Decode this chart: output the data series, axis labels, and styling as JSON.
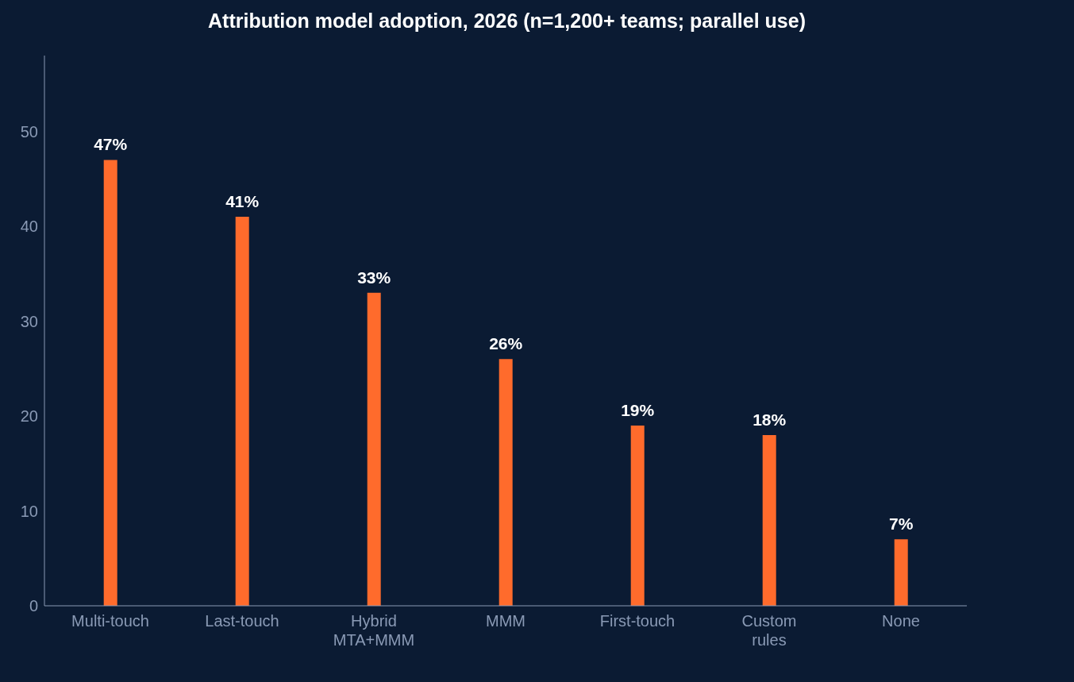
{
  "chart_data": {
    "type": "bar",
    "title": "Attribution model adoption, 2026 (n=1,200+ teams; parallel use)",
    "categories": [
      "Multi-touch",
      "Last-touch",
      "Hybrid\nMTA+MMM",
      "MMM",
      "First-touch",
      "Custom\nrules",
      "None"
    ],
    "values": [
      47,
      41,
      33,
      26,
      19,
      18,
      7
    ],
    "value_labels": [
      "47%",
      "41%",
      "33%",
      "26%",
      "19%",
      "18%",
      "7%"
    ],
    "color": "#ff6b2c",
    "ylim": [
      0,
      58
    ],
    "yticks": [
      0,
      10,
      20,
      30,
      40,
      50
    ],
    "grid": false,
    "legend": false
  }
}
